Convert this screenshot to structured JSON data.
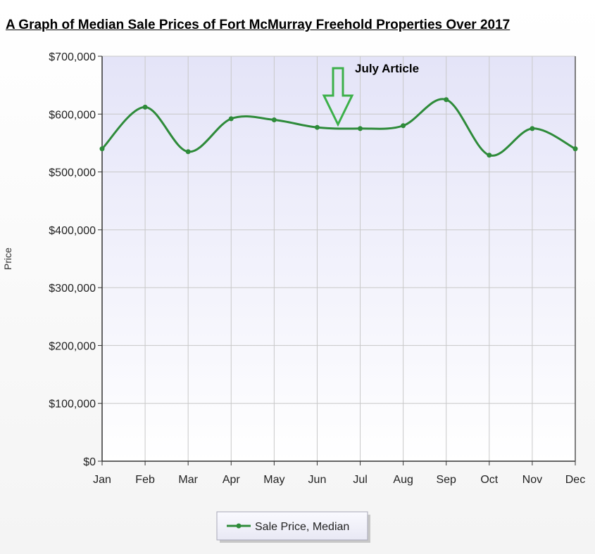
{
  "chart_data": {
    "type": "line",
    "title": "A Graph of Median Sale Prices of Fort McMurray Freehold Properties Over 2017",
    "xlabel": "",
    "ylabel": "Price",
    "categories": [
      "Jan",
      "Feb",
      "Mar",
      "Apr",
      "May",
      "Jun",
      "Jul",
      "Aug",
      "Sep",
      "Oct",
      "Nov",
      "Dec"
    ],
    "series": [
      {
        "name": "Sale Price, Median",
        "values": [
          540000,
          612000,
          535000,
          592000,
          590000,
          577000,
          575000,
          580000,
          625000,
          529000,
          575000,
          540000
        ]
      }
    ],
    "ylim": [
      0,
      700000
    ],
    "yticks": [
      0,
      100000,
      200000,
      300000,
      400000,
      500000,
      600000,
      700000
    ],
    "ytick_labels": [
      "$0",
      "$100,000",
      "$200,000",
      "$300,000",
      "$400,000",
      "$500,000",
      "$600,000",
      "$700,000"
    ],
    "grid": true,
    "legend_position": "bottom",
    "annotations": [
      {
        "text": "July Article",
        "points_to": "between Jun and Jul",
        "shape": "down-arrow"
      }
    ],
    "colors": {
      "line": "#2e8b3a",
      "arrow": "#3cb04a",
      "plot_bg_top": "#e4e4f8",
      "plot_bg_bottom": "#ffffff"
    }
  }
}
